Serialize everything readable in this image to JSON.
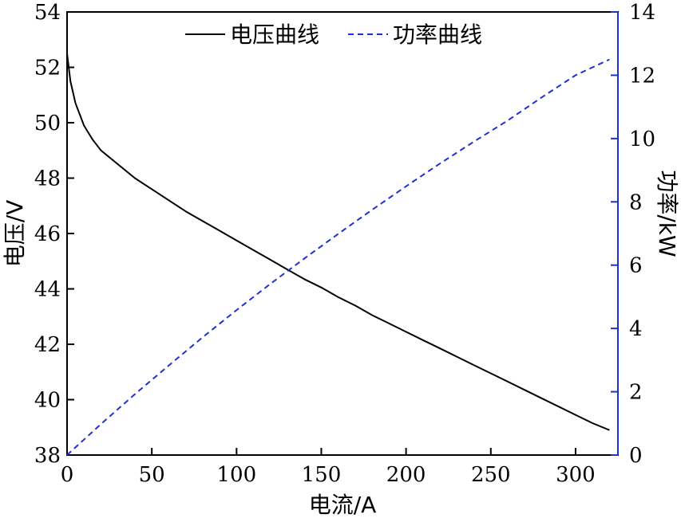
{
  "chart_data": {
    "type": "line",
    "xlabel": "电流/A",
    "ylabel_left": "电压/V",
    "ylabel_right": "功率/kW",
    "xlim": [
      0,
      325
    ],
    "ylim_left": [
      38,
      54
    ],
    "ylim_right": [
      0,
      14
    ],
    "x_ticks": [
      0,
      50,
      100,
      150,
      200,
      250,
      300
    ],
    "y_left_ticks": [
      38,
      40,
      42,
      44,
      46,
      48,
      50,
      52,
      54
    ],
    "y_right_ticks": [
      0,
      2,
      4,
      6,
      8,
      10,
      12,
      14
    ],
    "grid": false,
    "legend_position": "top-center",
    "series": [
      {
        "name": "电压曲线",
        "axis": "left",
        "style": "solid",
        "color": "#000000",
        "x": [
          0,
          2,
          5,
          10,
          15,
          20,
          30,
          40,
          50,
          60,
          70,
          80,
          90,
          100,
          110,
          120,
          130,
          140,
          150,
          160,
          170,
          180,
          190,
          200,
          210,
          220,
          230,
          240,
          250,
          260,
          270,
          280,
          290,
          300,
          310,
          320
        ],
        "y": [
          52.5,
          51.5,
          50.7,
          49.9,
          49.4,
          49.0,
          48.5,
          48.0,
          47.6,
          47.2,
          46.8,
          46.45,
          46.1,
          45.75,
          45.4,
          45.05,
          44.7,
          44.35,
          44.05,
          43.7,
          43.4,
          43.05,
          42.75,
          42.45,
          42.15,
          41.85,
          41.55,
          41.25,
          40.95,
          40.65,
          40.35,
          40.05,
          39.75,
          39.45,
          39.15,
          38.9
        ]
      },
      {
        "name": "功率曲线",
        "axis": "right",
        "style": "dashed",
        "color": "#1f2fd6",
        "x": [
          0,
          20,
          40,
          60,
          80,
          100,
          120,
          140,
          160,
          180,
          200,
          220,
          240,
          260,
          280,
          300,
          320
        ],
        "y": [
          0,
          0.98,
          1.92,
          2.83,
          3.72,
          4.58,
          5.41,
          6.21,
          6.99,
          7.75,
          8.49,
          9.21,
          9.9,
          10.57,
          11.3,
          12.0,
          12.5
        ]
      }
    ]
  }
}
